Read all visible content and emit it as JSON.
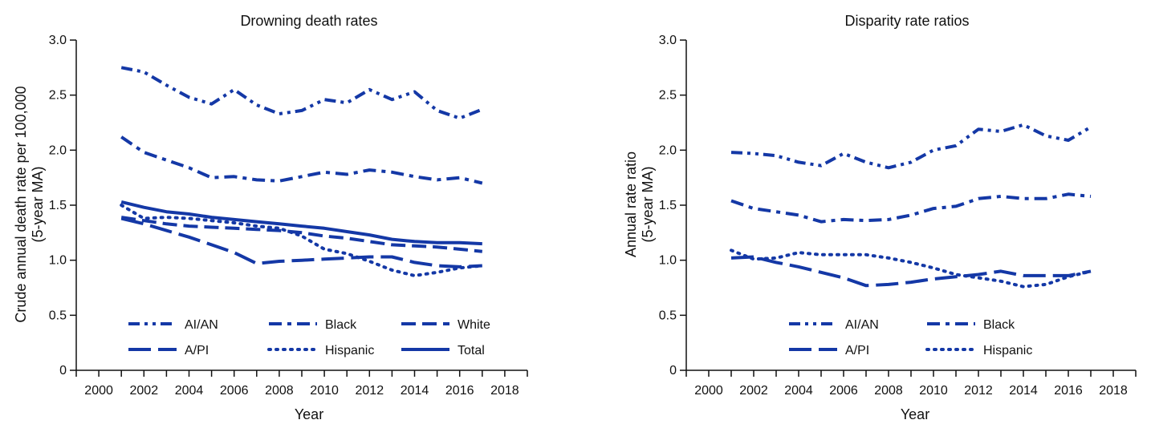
{
  "colors": {
    "series": "#1438a6",
    "axis": "#111111"
  },
  "chart_data": [
    {
      "type": "line",
      "title": "Drowning death rates",
      "xlabel": "Year",
      "ylabel": "Crude annual death rate per 100,000",
      "ylabel_sub": "(5-year MA)",
      "xlim": [
        1999,
        2019
      ],
      "ylim": [
        0,
        3.0
      ],
      "x_ticks": [
        "2000",
        "2002",
        "2004",
        "2006",
        "2008",
        "2010",
        "2012",
        "2014",
        "2016",
        "2018"
      ],
      "y_ticks": [
        "0",
        "0.5",
        "1.0",
        "1.5",
        "2.0",
        "2.5",
        "3.0"
      ],
      "grid": false,
      "legend_location": "bottom",
      "x": [
        2001,
        2002,
        2003,
        2004,
        2005,
        2006,
        2007,
        2008,
        2009,
        2010,
        2011,
        2012,
        2013,
        2014,
        2015,
        2016,
        2017
      ],
      "series": [
        {
          "name": "AI/AN",
          "style": "dash-dot-dot",
          "values": [
            2.75,
            2.71,
            2.59,
            2.48,
            2.42,
            2.55,
            2.41,
            2.33,
            2.36,
            2.46,
            2.43,
            2.55,
            2.46,
            2.53,
            2.36,
            2.29,
            2.37
          ]
        },
        {
          "name": "Black",
          "style": "dash-dot",
          "values": [
            2.12,
            1.98,
            1.91,
            1.84,
            1.75,
            1.76,
            1.73,
            1.72,
            1.76,
            1.8,
            1.78,
            1.82,
            1.8,
            1.76,
            1.73,
            1.75,
            1.7
          ]
        },
        {
          "name": "White",
          "style": "dash",
          "values": [
            1.39,
            1.36,
            1.33,
            1.31,
            1.3,
            1.29,
            1.28,
            1.27,
            1.25,
            1.22,
            1.2,
            1.17,
            1.14,
            1.13,
            1.12,
            1.1,
            1.08
          ]
        },
        {
          "name": "A/PI",
          "style": "long-dash",
          "values": [
            1.38,
            1.33,
            1.27,
            1.21,
            1.14,
            1.07,
            0.97,
            0.99,
            1.0,
            1.01,
            1.02,
            1.03,
            1.03,
            0.98,
            0.95,
            0.94,
            0.95
          ]
        },
        {
          "name": "Hispanic",
          "style": "dot",
          "values": [
            1.5,
            1.38,
            1.39,
            1.38,
            1.36,
            1.34,
            1.31,
            1.29,
            1.22,
            1.1,
            1.06,
            0.99,
            0.91,
            0.86,
            0.89,
            0.93,
            0.95
          ]
        },
        {
          "name": "Total",
          "style": "solid",
          "values": [
            1.53,
            1.48,
            1.44,
            1.42,
            1.39,
            1.37,
            1.35,
            1.33,
            1.31,
            1.29,
            1.26,
            1.23,
            1.19,
            1.17,
            1.16,
            1.16,
            1.15
          ]
        }
      ]
    },
    {
      "type": "line",
      "title": "Disparity rate ratios",
      "xlabel": "Year",
      "ylabel": "Annual rate ratio",
      "ylabel_sub": "(5-year MA)",
      "xlim": [
        1999,
        2019
      ],
      "ylim": [
        0,
        3.0
      ],
      "x_ticks": [
        "2000",
        "2002",
        "2004",
        "2006",
        "2008",
        "2010",
        "2012",
        "2014",
        "2016",
        "2018"
      ],
      "y_ticks": [
        "0",
        "0.5",
        "1.0",
        "1.5",
        "2.0",
        "2.5",
        "3.0"
      ],
      "grid": false,
      "legend_location": "bottom",
      "x": [
        2001,
        2002,
        2003,
        2004,
        2005,
        2006,
        2007,
        2008,
        2009,
        2010,
        2011,
        2012,
        2013,
        2014,
        2015,
        2016,
        2017
      ],
      "series": [
        {
          "name": "AI/AN",
          "style": "dash-dot-dot",
          "values": [
            1.98,
            1.97,
            1.95,
            1.89,
            1.86,
            1.97,
            1.89,
            1.84,
            1.89,
            2.0,
            2.04,
            2.19,
            2.17,
            2.23,
            2.13,
            2.09,
            2.21
          ]
        },
        {
          "name": "Black",
          "style": "dash-dot",
          "values": [
            1.54,
            1.47,
            1.44,
            1.41,
            1.35,
            1.37,
            1.36,
            1.37,
            1.41,
            1.47,
            1.49,
            1.56,
            1.58,
            1.56,
            1.56,
            1.6,
            1.58
          ]
        },
        {
          "name": "A/PI",
          "style": "long-dash",
          "values": [
            1.02,
            1.03,
            0.98,
            0.94,
            0.89,
            0.84,
            0.77,
            0.78,
            0.8,
            0.83,
            0.85,
            0.87,
            0.9,
            0.86,
            0.86,
            0.86,
            0.9
          ]
        },
        {
          "name": "Hispanic",
          "style": "dot",
          "values": [
            1.09,
            1.01,
            1.02,
            1.07,
            1.05,
            1.05,
            1.05,
            1.02,
            0.98,
            0.93,
            0.87,
            0.84,
            0.81,
            0.76,
            0.78,
            0.85,
            0.9
          ]
        }
      ]
    }
  ]
}
